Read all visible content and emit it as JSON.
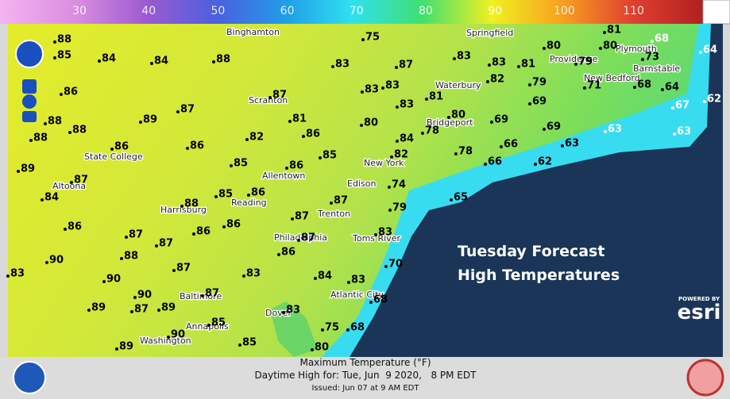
{
  "legend": {
    "ticks": [
      30,
      40,
      50,
      60,
      70,
      80,
      90,
      100,
      110
    ]
  },
  "title": {
    "line1": "Tuesday Forecast",
    "line2": "High Temperatures"
  },
  "places": [
    "Binghamton",
    "Springfield",
    "Providence",
    "Plymouth",
    "Barnstable",
    "New Bedford",
    "Waterbury",
    "Bridgeport",
    "Scranton",
    "State College",
    "New York",
    "Allentown",
    "Edison",
    "Altoona",
    "Harrisburg",
    "Reading",
    "Trenton",
    "Philadelphia",
    "Toms River",
    "Atlantic City",
    "Dover",
    "Baltimore",
    "Annapolis",
    "Washington"
  ],
  "temperatures": [
    88,
    85,
    84,
    84,
    88,
    75,
    83,
    87,
    83,
    83,
    81,
    80,
    79,
    80,
    73,
    68,
    64,
    81,
    86,
    87,
    89,
    88,
    88,
    88,
    87,
    83,
    83,
    81,
    82,
    79,
    69,
    71,
    68,
    64,
    62,
    67,
    83,
    81,
    80,
    84,
    78,
    80,
    69,
    69,
    63,
    63,
    82,
    86,
    86,
    86,
    85,
    82,
    78,
    66,
    63,
    66,
    62,
    89,
    85,
    86,
    87,
    84,
    88,
    85,
    86,
    87,
    74,
    79,
    65,
    86,
    87,
    86,
    86,
    87,
    87,
    83,
    88,
    87,
    86,
    90,
    87,
    83,
    70,
    83,
    90,
    84,
    83,
    90,
    87,
    89,
    87,
    89,
    68,
    83,
    85,
    75,
    68,
    90,
    85,
    89,
    80
  ],
  "branding": {
    "powered": "POWERED BY",
    "esri": "esri"
  },
  "footer": {
    "line1": "Maximum Temperature (°F)",
    "line2": "Daytime High for: Tue, Jun  9 2020,   8 PM EDT",
    "line3": "Issued: Jun 07 at 9 AM EDT"
  }
}
